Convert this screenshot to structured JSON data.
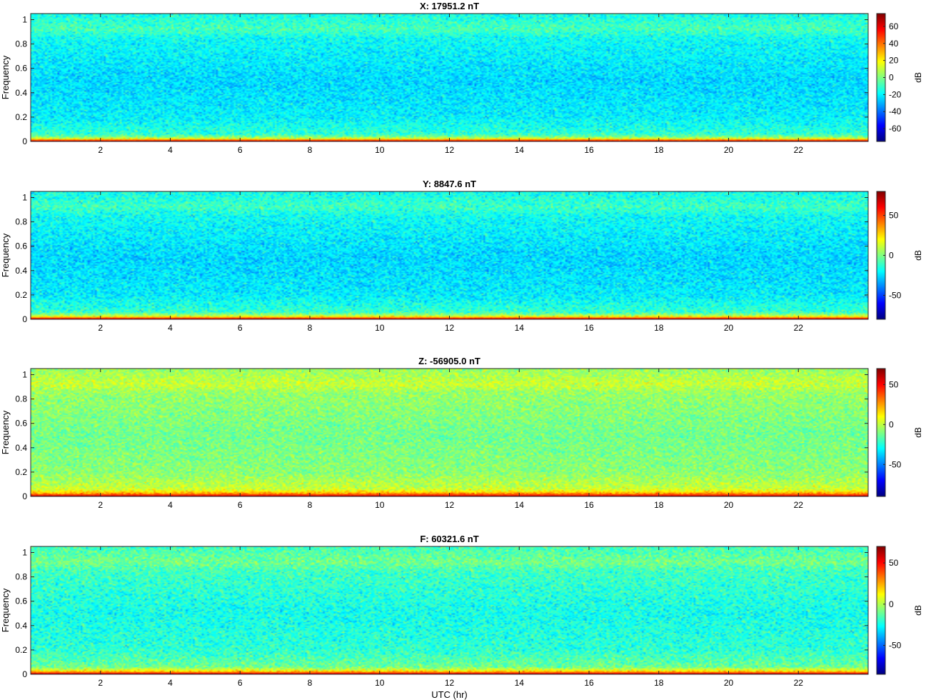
{
  "chart_data": [
    {
      "type": "heatmap",
      "title": "X: 17951.2 nT",
      "xlabel": "",
      "ylabel": "Frequency",
      "xlim": [
        0,
        24
      ],
      "ylim": [
        0,
        1.05
      ],
      "xticks": [
        2,
        4,
        6,
        8,
        10,
        12,
        14,
        16,
        18,
        20,
        22
      ],
      "xtick_labels": [
        "2",
        "4",
        "6",
        "8",
        "10",
        "12",
        "14",
        "16",
        "18",
        "20",
        "22"
      ],
      "yticks": [
        0,
        0.2,
        0.4,
        0.6,
        0.8,
        1
      ],
      "ytick_labels": [
        "0",
        "0.2",
        "0.4",
        "0.6",
        "0.8",
        "1"
      ],
      "colorbar": {
        "label": "dB",
        "limits": [
          -75,
          75
        ],
        "ticks": [
          -60,
          -40,
          -20,
          0,
          20,
          40,
          60
        ],
        "tick_labels": [
          "-60",
          "-40",
          "-20",
          "0",
          "20",
          "40",
          "60"
        ]
      },
      "profile": [
        {
          "frequency": 0.0,
          "db": 72
        },
        {
          "frequency": 0.01,
          "db": 42
        },
        {
          "frequency": 0.03,
          "db": 5
        },
        {
          "frequency": 0.06,
          "db": -12
        },
        {
          "frequency": 0.2,
          "db": -20
        },
        {
          "frequency": 0.5,
          "db": -24
        },
        {
          "frequency": 0.85,
          "db": -17
        },
        {
          "frequency": 0.92,
          "db": -8
        },
        {
          "frequency": 1.05,
          "db": -16
        }
      ],
      "noise_db": 9
    },
    {
      "type": "heatmap",
      "title": "Y: 8847.6 nT",
      "xlabel": "",
      "ylabel": "Frequency",
      "xlim": [
        0,
        24
      ],
      "ylim": [
        0,
        1.05
      ],
      "xticks": [
        2,
        4,
        6,
        8,
        10,
        12,
        14,
        16,
        18,
        20,
        22
      ],
      "xtick_labels": [
        "2",
        "4",
        "6",
        "8",
        "10",
        "12",
        "14",
        "16",
        "18",
        "20",
        "22"
      ],
      "yticks": [
        0,
        0.2,
        0.4,
        0.6,
        0.8,
        1
      ],
      "ytick_labels": [
        "0",
        "0.2",
        "0.4",
        "0.6",
        "0.8",
        "1"
      ],
      "colorbar": {
        "label": "dB",
        "limits": [
          -80,
          80
        ],
        "ticks": [
          -50,
          0,
          50
        ],
        "tick_labels": [
          "-50",
          "0",
          "50"
        ]
      },
      "profile": [
        {
          "frequency": 0.0,
          "db": 78
        },
        {
          "frequency": 0.01,
          "db": 45
        },
        {
          "frequency": 0.03,
          "db": 8
        },
        {
          "frequency": 0.06,
          "db": -12
        },
        {
          "frequency": 0.2,
          "db": -22
        },
        {
          "frequency": 0.5,
          "db": -26
        },
        {
          "frequency": 0.85,
          "db": -18
        },
        {
          "frequency": 0.92,
          "db": -10
        },
        {
          "frequency": 1.05,
          "db": -18
        }
      ],
      "noise_db": 10
    },
    {
      "type": "heatmap",
      "title": "Z: -56905.0 nT",
      "xlabel": "",
      "ylabel": "Frequency",
      "xlim": [
        0,
        24
      ],
      "ylim": [
        0,
        1.05
      ],
      "xticks": [
        2,
        4,
        6,
        8,
        10,
        12,
        14,
        16,
        18,
        20,
        22
      ],
      "xtick_labels": [
        "2",
        "4",
        "6",
        "8",
        "10",
        "12",
        "14",
        "16",
        "18",
        "20",
        "22"
      ],
      "yticks": [
        0,
        0.2,
        0.4,
        0.6,
        0.8,
        1
      ],
      "ytick_labels": [
        "0",
        "0.2",
        "0.4",
        "0.6",
        "0.8",
        "1"
      ],
      "colorbar": {
        "label": "dB",
        "limits": [
          -90,
          70
        ],
        "ticks": [
          -50,
          0,
          50
        ],
        "tick_labels": [
          "-50",
          "0",
          "50"
        ]
      },
      "profile": [
        {
          "frequency": 0.0,
          "db": 68
        },
        {
          "frequency": 0.01,
          "db": 45
        },
        {
          "frequency": 0.03,
          "db": 20
        },
        {
          "frequency": 0.06,
          "db": 2
        },
        {
          "frequency": 0.2,
          "db": -8
        },
        {
          "frequency": 0.5,
          "db": -12
        },
        {
          "frequency": 0.85,
          "db": -6
        },
        {
          "frequency": 0.92,
          "db": 2
        },
        {
          "frequency": 1.05,
          "db": -6
        }
      ],
      "noise_db": 9
    },
    {
      "type": "heatmap",
      "title": "F: 60321.6 nT",
      "xlabel": "UTC (hr)",
      "ylabel": "Frequency",
      "xlim": [
        0,
        24
      ],
      "ylim": [
        0,
        1.05
      ],
      "xticks": [
        2,
        4,
        6,
        8,
        10,
        12,
        14,
        16,
        18,
        20,
        22
      ],
      "xtick_labels": [
        "2",
        "4",
        "6",
        "8",
        "10",
        "12",
        "14",
        "16",
        "18",
        "20",
        "22"
      ],
      "yticks": [
        0,
        0.2,
        0.4,
        0.6,
        0.8,
        1
      ],
      "ytick_labels": [
        "0",
        "0.2",
        "0.4",
        "0.6",
        "0.8",
        "1"
      ],
      "colorbar": {
        "label": "dB",
        "limits": [
          -85,
          70
        ],
        "ticks": [
          -50,
          0,
          50
        ],
        "tick_labels": [
          "-50",
          "0",
          "50"
        ]
      },
      "profile": [
        {
          "frequency": 0.0,
          "db": 68
        },
        {
          "frequency": 0.01,
          "db": 42
        },
        {
          "frequency": 0.03,
          "db": 12
        },
        {
          "frequency": 0.06,
          "db": -10
        },
        {
          "frequency": 0.2,
          "db": -20
        },
        {
          "frequency": 0.5,
          "db": -24
        },
        {
          "frequency": 0.85,
          "db": -17
        },
        {
          "frequency": 0.92,
          "db": -9
        },
        {
          "frequency": 1.05,
          "db": -17
        }
      ],
      "noise_db": 10
    }
  ]
}
